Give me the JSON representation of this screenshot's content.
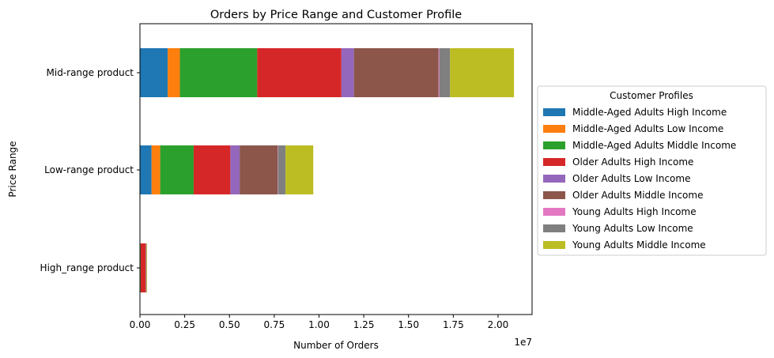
{
  "chart_data": {
    "type": "bar",
    "orientation": "horizontal",
    "stacked": true,
    "title": "Orders by Price Range and Customer Profile",
    "xlabel": "Number of Orders",
    "ylabel": "Price Range",
    "x_offset_label": "1e7",
    "xlim": [
      0,
      21900000
    ],
    "xticks": [
      0,
      2500000,
      5000000,
      7500000,
      10000000,
      12500000,
      15000000,
      17500000,
      20000000
    ],
    "xtick_labels": [
      "0.00",
      "0.25",
      "0.50",
      "0.75",
      "1.00",
      "1.25",
      "1.50",
      "1.75",
      "2.00"
    ],
    "categories": [
      "Mid-range product",
      "Low-range product",
      "High_range product"
    ],
    "grid": false,
    "legend": {
      "title": "Customer Profiles",
      "position": "right"
    },
    "series": [
      {
        "name": "Middle-Aged Adults High Income",
        "color": "#1f77b4",
        "values": [
          1550000,
          650000,
          10000
        ]
      },
      {
        "name": "Middle-Aged Adults Low Income",
        "color": "#ff7f0e",
        "values": [
          680000,
          480000,
          10000
        ]
      },
      {
        "name": "Middle-Aged Adults Middle Income",
        "color": "#2ca02c",
        "values": [
          4320000,
          1870000,
          20000
        ]
      },
      {
        "name": "Older Adults High Income",
        "color": "#d62728",
        "values": [
          4700000,
          2050000,
          280000
        ]
      },
      {
        "name": "Older Adults Low Income",
        "color": "#9467bd",
        "values": [
          700000,
          520000,
          10000
        ]
      },
      {
        "name": "Older Adults Middle Income",
        "color": "#8c564b",
        "values": [
          4730000,
          2120000,
          20000
        ]
      },
      {
        "name": "Young Adults High Income",
        "color": "#e377c2",
        "values": [
          40000,
          20000,
          10000
        ]
      },
      {
        "name": "Young Adults Low Income",
        "color": "#7f7f7f",
        "values": [
          600000,
          420000,
          10000
        ]
      },
      {
        "name": "Young Adults Middle Income",
        "color": "#bcbd22",
        "values": [
          3570000,
          1550000,
          30000
        ]
      }
    ]
  }
}
